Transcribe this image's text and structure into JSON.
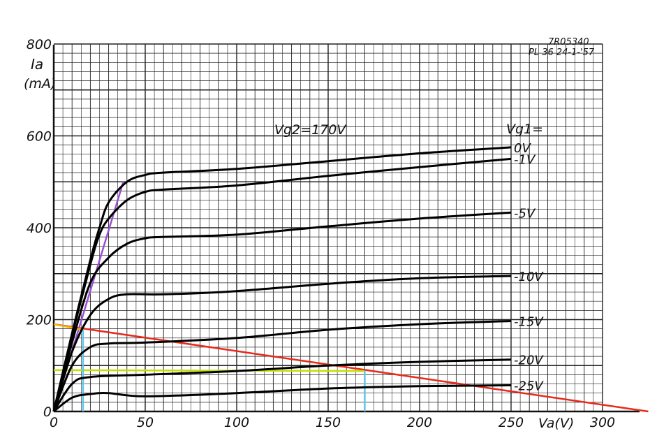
{
  "meta": {
    "code": "7R05340",
    "tube_and_date": "PL 36  24-1-'57"
  },
  "chart_data": {
    "type": "line",
    "title": "",
    "xlabel": "Va(V)",
    "ylabel_line1": "Ia",
    "ylabel_line2": "(mA)",
    "annotation": "Vg2=170V",
    "legend_header": "Vg1=",
    "xlim": [
      0,
      300
    ],
    "ylim": [
      0,
      800
    ],
    "x_ticks": [
      "0",
      "50",
      "100",
      "150",
      "200",
      "250",
      "300"
    ],
    "y_ticks": [
      "0",
      "200",
      "400",
      "600",
      "800"
    ],
    "grid": true,
    "series": [
      {
        "name": "0V",
        "points": [
          [
            0,
            0
          ],
          [
            10,
            170
          ],
          [
            20,
            330
          ],
          [
            25,
            400
          ],
          [
            30,
            455
          ],
          [
            40,
            500
          ],
          [
            50,
            515
          ],
          [
            60,
            520
          ],
          [
            100,
            528
          ],
          [
            150,
            545
          ],
          [
            200,
            562
          ],
          [
            250,
            575
          ]
        ]
      },
      {
        "name": "-1V",
        "points": [
          [
            0,
            0
          ],
          [
            10,
            165
          ],
          [
            20,
            320
          ],
          [
            25,
            385
          ],
          [
            30,
            420
          ],
          [
            40,
            460
          ],
          [
            50,
            478
          ],
          [
            60,
            483
          ],
          [
            100,
            492
          ],
          [
            150,
            513
          ],
          [
            200,
            532
          ],
          [
            250,
            550
          ]
        ]
      },
      {
        "name": "-5V",
        "points": [
          [
            0,
            0
          ],
          [
            10,
            150
          ],
          [
            20,
            280
          ],
          [
            30,
            335
          ],
          [
            40,
            365
          ],
          [
            50,
            377
          ],
          [
            60,
            380
          ],
          [
            100,
            385
          ],
          [
            150,
            403
          ],
          [
            200,
            420
          ],
          [
            250,
            433
          ]
        ]
      },
      {
        "name": "-10V",
        "points": [
          [
            0,
            0
          ],
          [
            10,
            130
          ],
          [
            20,
            210
          ],
          [
            30,
            245
          ],
          [
            40,
            255
          ],
          [
            60,
            255
          ],
          [
            100,
            262
          ],
          [
            150,
            278
          ],
          [
            200,
            290
          ],
          [
            250,
            295
          ]
        ]
      },
      {
        "name": "-15V",
        "points": [
          [
            0,
            0
          ],
          [
            10,
            100
          ],
          [
            20,
            140
          ],
          [
            30,
            148
          ],
          [
            50,
            150
          ],
          [
            100,
            160
          ],
          [
            150,
            178
          ],
          [
            200,
            190
          ],
          [
            250,
            197
          ]
        ]
      },
      {
        "name": "-20V",
        "points": [
          [
            0,
            0
          ],
          [
            10,
            60
          ],
          [
            20,
            75
          ],
          [
            50,
            80
          ],
          [
            100,
            88
          ],
          [
            150,
            100
          ],
          [
            200,
            108
          ],
          [
            250,
            113
          ]
        ]
      },
      {
        "name": "-25V",
        "points": [
          [
            0,
            0
          ],
          [
            10,
            30
          ],
          [
            20,
            38
          ],
          [
            30,
            40
          ],
          [
            50,
            33
          ],
          [
            100,
            40
          ],
          [
            150,
            50
          ],
          [
            200,
            55
          ],
          [
            250,
            57
          ]
        ]
      }
    ],
    "overlay_lines": [
      {
        "color": "#e8291c",
        "points": [
          [
            0,
            190
          ],
          [
            325,
            0
          ]
        ]
      },
      {
        "color": "#9b4fd0",
        "points": [
          [
            0,
            0
          ],
          [
            38,
            500
          ]
        ]
      },
      {
        "color": "#f0b400",
        "points": [
          [
            0,
            190
          ],
          [
            16,
            178
          ]
        ]
      },
      {
        "color": "#c2e000",
        "points": [
          [
            0,
            90
          ],
          [
            170,
            88
          ]
        ]
      },
      {
        "color": "#5ec6e8",
        "points": [
          [
            16,
            0
          ],
          [
            16,
            178
          ]
        ]
      },
      {
        "color": "#5ec6e8",
        "points": [
          [
            170,
            0
          ],
          [
            170,
            88
          ]
        ]
      }
    ]
  }
}
